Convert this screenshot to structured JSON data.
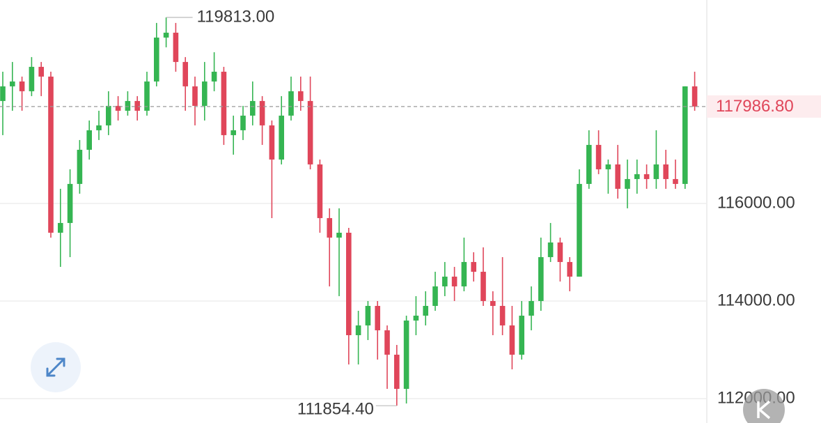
{
  "chart_data": {
    "type": "candlestick",
    "open": [
      118100,
      118400,
      118500,
      118300,
      118800,
      118600,
      115400,
      115600,
      116400,
      117100,
      117500,
      117600,
      118000,
      117900,
      118100,
      117900,
      118500,
      119400,
      119500,
      118900,
      118400,
      118000,
      118500,
      118700,
      117400,
      117500,
      117800,
      118100,
      117600,
      116900,
      117800,
      118300,
      118100,
      116800,
      115700,
      115300,
      115400,
      113300,
      113500,
      113900,
      113400,
      112900,
      112200,
      113600,
      113700,
      113900,
      114300,
      114500,
      114300,
      114800,
      114600,
      114000,
      113900,
      113500,
      112900,
      113700,
      114000,
      114900,
      115200,
      114800,
      114500,
      116400,
      117200,
      116700,
      116800,
      116300,
      116500,
      116600,
      116500,
      116800,
      116500,
      116400,
      118400
    ],
    "high": [
      118700,
      118900,
      118600,
      119000,
      118900,
      118700,
      116300,
      116700,
      117300,
      117700,
      117900,
      118300,
      118200,
      118300,
      118200,
      118700,
      119700,
      119813,
      119700,
      119000,
      118600,
      118900,
      119100,
      118800,
      117800,
      118000,
      118500,
      118200,
      117700,
      118200,
      118600,
      118600,
      118600,
      116900,
      115900,
      115900,
      115500,
      113800,
      114000,
      114000,
      113500,
      113100,
      113700,
      114100,
      114200,
      114600,
      114800,
      114700,
      115300,
      115000,
      115100,
      114200,
      114900,
      113900,
      114000,
      114300,
      115300,
      115600,
      115300,
      114900,
      116700,
      117500,
      117500,
      116900,
      117200,
      116900,
      116900,
      116800,
      117500,
      117100,
      116900,
      118400,
      118700
    ],
    "low": [
      117400,
      117900,
      117900,
      118200,
      118200,
      115300,
      114700,
      114900,
      116200,
      116900,
      117300,
      117400,
      117700,
      117800,
      117700,
      117800,
      118400,
      119200,
      118700,
      117900,
      117600,
      117700,
      118300,
      117200,
      117000,
      117300,
      117600,
      117200,
      115700,
      116800,
      117700,
      117900,
      116700,
      115400,
      114300,
      114100,
      112700,
      112700,
      113200,
      112800,
      112200,
      111854.4,
      111900,
      113300,
      113500,
      113800,
      114100,
      114000,
      114200,
      114400,
      113900,
      113300,
      113300,
      112600,
      112800,
      113400,
      113800,
      114800,
      114400,
      114200,
      114500,
      116300,
      116600,
      116200,
      116100,
      115900,
      116200,
      116300,
      116300,
      116300,
      116300,
      116300,
      117900
    ],
    "close": [
      118400,
      118500,
      118300,
      118800,
      118600,
      115400,
      115600,
      116400,
      117100,
      117500,
      117600,
      118000,
      117900,
      118100,
      117900,
      118500,
      119400,
      119500,
      118900,
      118400,
      118000,
      118500,
      118700,
      117400,
      117500,
      117800,
      118100,
      117600,
      116900,
      117800,
      118300,
      118100,
      116800,
      115700,
      115300,
      115400,
      113300,
      113500,
      113900,
      113400,
      112900,
      112200,
      113600,
      113700,
      113900,
      114300,
      114500,
      114300,
      114800,
      114600,
      114000,
      113900,
      113500,
      112900,
      113700,
      114000,
      114900,
      115200,
      114800,
      114500,
      116400,
      117200,
      116700,
      116800,
      116300,
      116500,
      116600,
      116500,
      116800,
      116500,
      116400,
      118400,
      117986.8
    ],
    "up_color": "#35b552",
    "down_color": "#e0465a",
    "ylim": [
      111500,
      120170
    ],
    "yticks": [
      {
        "value": 112000,
        "label": "112000.00"
      },
      {
        "value": 114000,
        "label": "114000.00"
      },
      {
        "value": 116000,
        "label": "116000.00"
      }
    ],
    "grid": true,
    "max_annotation": {
      "value": 119813,
      "label": "119813.00"
    },
    "min_annotation": {
      "value": 111854.4,
      "label": "111854.40"
    },
    "last_price": {
      "value": 117986.8,
      "label": "117986.80"
    }
  }
}
